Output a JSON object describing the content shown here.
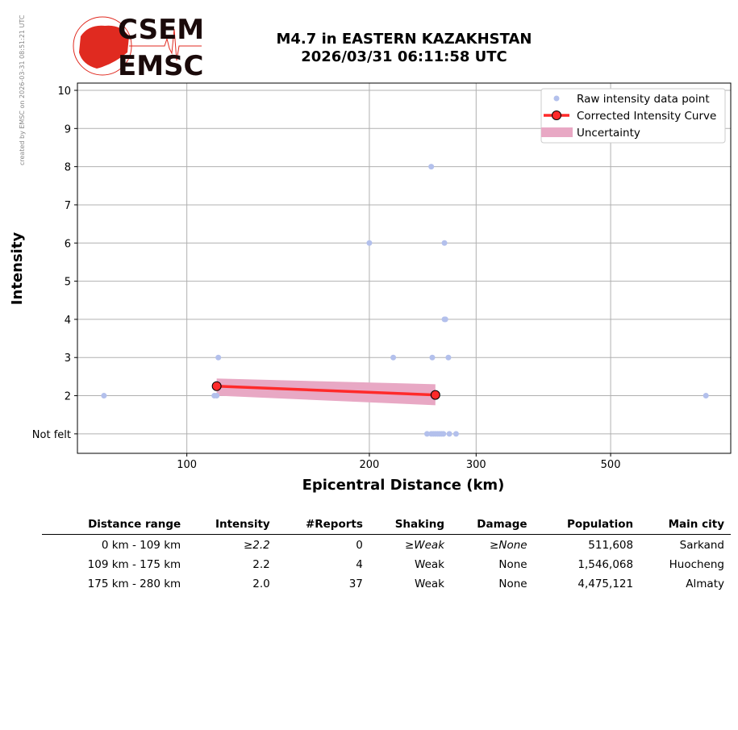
{
  "watermark": "created by EMSC on 2026-03-31 08:51:21 UTC",
  "logo": {
    "line1": "CSEM",
    "line2": "EMSC"
  },
  "title": {
    "line1": "M4.7 in EASTERN KAZAKHSTAN",
    "line2": "2026/03/31 06:11:58 UTC"
  },
  "colors": {
    "raw": "#b3c0ec",
    "curve": "#ff2a2a",
    "uncertainty": "#e8a8c4",
    "logo": "#e02a20"
  },
  "chart_data": {
    "type": "scatter",
    "xlabel": "Epicentral Distance (km)",
    "ylabel": "Intensity",
    "xscale": "log",
    "xlim": [
      66,
      789
    ],
    "ylim": [
      0.49,
      10.19
    ],
    "xticks": [
      {
        "v": 100,
        "label": "100"
      },
      {
        "v": 200,
        "label": "200"
      },
      {
        "v": 300,
        "label": "300"
      },
      {
        "v": 500,
        "label": "500"
      }
    ],
    "yticks": [
      {
        "v": 1,
        "label": "Not felt"
      },
      {
        "v": 2,
        "label": "2"
      },
      {
        "v": 3,
        "label": "3"
      },
      {
        "v": 4,
        "label": "4"
      },
      {
        "v": 5,
        "label": "5"
      },
      {
        "v": 6,
        "label": "6"
      },
      {
        "v": 7,
        "label": "7"
      },
      {
        "v": 8,
        "label": "8"
      },
      {
        "v": 9,
        "label": "9"
      },
      {
        "v": 10,
        "label": "10"
      }
    ],
    "grid": true,
    "legend_position": "top-right",
    "legend": [
      "Raw intensity data point",
      "Corrected Intensity Curve",
      "Uncertainty"
    ],
    "raw_points": [
      [
        73,
        2
      ],
      [
        111,
        2
      ],
      [
        112,
        2
      ],
      [
        112.7,
        3
      ],
      [
        200,
        6
      ],
      [
        219,
        3
      ],
      [
        253,
        8
      ],
      [
        266,
        6
      ],
      [
        266,
        4
      ],
      [
        267,
        4
      ],
      [
        254,
        3
      ],
      [
        270,
        3
      ],
      [
        255,
        2
      ],
      [
        249,
        1
      ],
      [
        253,
        1
      ],
      [
        255,
        1
      ],
      [
        257,
        1
      ],
      [
        259,
        1
      ],
      [
        261,
        1
      ],
      [
        263,
        1
      ],
      [
        265,
        1
      ],
      [
        271,
        1
      ],
      [
        278,
        1
      ],
      [
        718,
        2
      ]
    ],
    "curve": [
      [
        112,
        2.25
      ],
      [
        257,
        2.02
      ]
    ],
    "uncertainty": {
      "x": [
        112,
        257
      ],
      "lower": [
        2.0,
        1.75
      ],
      "upper": [
        2.45,
        2.3
      ]
    }
  },
  "table": {
    "headers": [
      "Distance range",
      "Intensity",
      "#Reports",
      "Shaking",
      "Damage",
      "Population",
      "Main city"
    ],
    "rows": [
      [
        "0 km -  109 km",
        "≥2.2",
        "0",
        "≥Weak",
        "≥None",
        "511,608",
        "Sarkand"
      ],
      [
        "109 km -  175 km",
        "2.2",
        "4",
        "Weak",
        "None",
        "1,546,068",
        "Huocheng"
      ],
      [
        "175 km -  280 km",
        "2.0",
        "37",
        "Weak",
        "None",
        "4,475,121",
        "Almaty"
      ]
    ]
  }
}
